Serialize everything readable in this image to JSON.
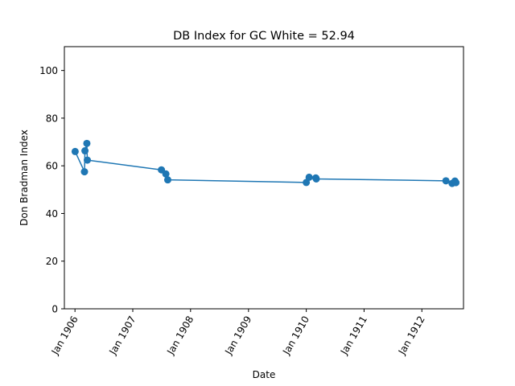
{
  "chart_data": {
    "type": "line",
    "title": "DB Index for GC White = 52.94",
    "xlabel": "Date",
    "ylabel": "Don Bradman Index",
    "x_axis_type": "date",
    "xlim": [
      "1905-10-26",
      "1912-09-20"
    ],
    "ylim": [
      0,
      110
    ],
    "x_ticks": [
      {
        "date": "1906-01-01",
        "label": "Jan 1906"
      },
      {
        "date": "1907-01-01",
        "label": "Jan 1907"
      },
      {
        "date": "1908-01-01",
        "label": "Jan 1908"
      },
      {
        "date": "1909-01-01",
        "label": "Jan 1909"
      },
      {
        "date": "1910-01-01",
        "label": "Jan 1910"
      },
      {
        "date": "1911-01-01",
        "label": "Jan 1911"
      },
      {
        "date": "1912-01-01",
        "label": "Jan 1912"
      }
    ],
    "y_ticks": [
      0,
      20,
      40,
      60,
      80,
      100
    ],
    "grid": false,
    "series": [
      {
        "color": "#1f77b4",
        "marker": "circle",
        "points": [
          {
            "x": "1906-01-02",
            "y": 66.0
          },
          {
            "x": "1906-03-02",
            "y": 57.5
          },
          {
            "x": "1906-03-05",
            "y": 66.3
          },
          {
            "x": "1906-03-17",
            "y": 69.4
          },
          {
            "x": "1906-03-20",
            "y": 62.4
          },
          {
            "x": "1907-07-01",
            "y": 58.3
          },
          {
            "x": "1907-07-29",
            "y": 56.6
          },
          {
            "x": "1907-08-10",
            "y": 54.1
          },
          {
            "x": "1910-01-01",
            "y": 53.0
          },
          {
            "x": "1910-01-19",
            "y": 55.2
          },
          {
            "x": "1910-03-02",
            "y": 54.9
          },
          {
            "x": "1910-03-05",
            "y": 54.5
          },
          {
            "x": "1912-06-01",
            "y": 53.7
          },
          {
            "x": "1912-07-10",
            "y": 52.6
          },
          {
            "x": "1912-07-28",
            "y": 53.6
          },
          {
            "x": "1912-08-03",
            "y": 52.94
          }
        ]
      }
    ]
  }
}
